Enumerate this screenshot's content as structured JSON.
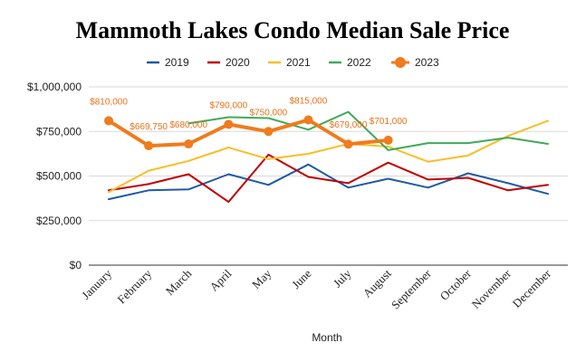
{
  "chart_data": {
    "type": "line",
    "title": "Mammoth Lakes Condo Median Sale Price",
    "xlabel": "Month",
    "ylabel": "",
    "categories": [
      "January",
      "February",
      "March",
      "April",
      "May",
      "June",
      "July",
      "August",
      "September",
      "October",
      "November",
      "December"
    ],
    "ylim": [
      0,
      1000000
    ],
    "yticks": [
      0,
      250000,
      500000,
      750000,
      1000000
    ],
    "ytick_labels": [
      "$0",
      "$250,000",
      "$500,000",
      "$750,000",
      "$1,000,000"
    ],
    "grid": true,
    "legend_position": "top",
    "series": [
      {
        "name": "2019",
        "color": "#1f5aa6",
        "values": [
          370000,
          420000,
          425000,
          510000,
          450000,
          565000,
          435000,
          485000,
          435000,
          515000,
          460000,
          400000
        ]
      },
      {
        "name": "2020",
        "color": "#c00000",
        "values": [
          420000,
          455000,
          510000,
          355000,
          620000,
          495000,
          460000,
          575000,
          480000,
          490000,
          420000,
          450000
        ]
      },
      {
        "name": "2021",
        "color": "#f6bf26",
        "values": [
          410000,
          530000,
          585000,
          660000,
          595000,
          625000,
          680000,
          665000,
          580000,
          615000,
          725000,
          810000
        ]
      },
      {
        "name": "2022",
        "color": "#3faa5a",
        "values": [
          790000,
          null,
          795000,
          830000,
          825000,
          760000,
          860000,
          645000,
          685000,
          685000,
          715000,
          680000
        ]
      },
      {
        "name": "2023",
        "color": "#f07b1d",
        "values": [
          810000,
          669750,
          680000,
          790000,
          750000,
          815000,
          679000,
          701000,
          null,
          null,
          null,
          null
        ],
        "data_labels": [
          "$810,000",
          "$669,750",
          "$680,000",
          "$790,000",
          "$750,000",
          "$815,000",
          "$679,000",
          "$701,000"
        ]
      }
    ]
  }
}
